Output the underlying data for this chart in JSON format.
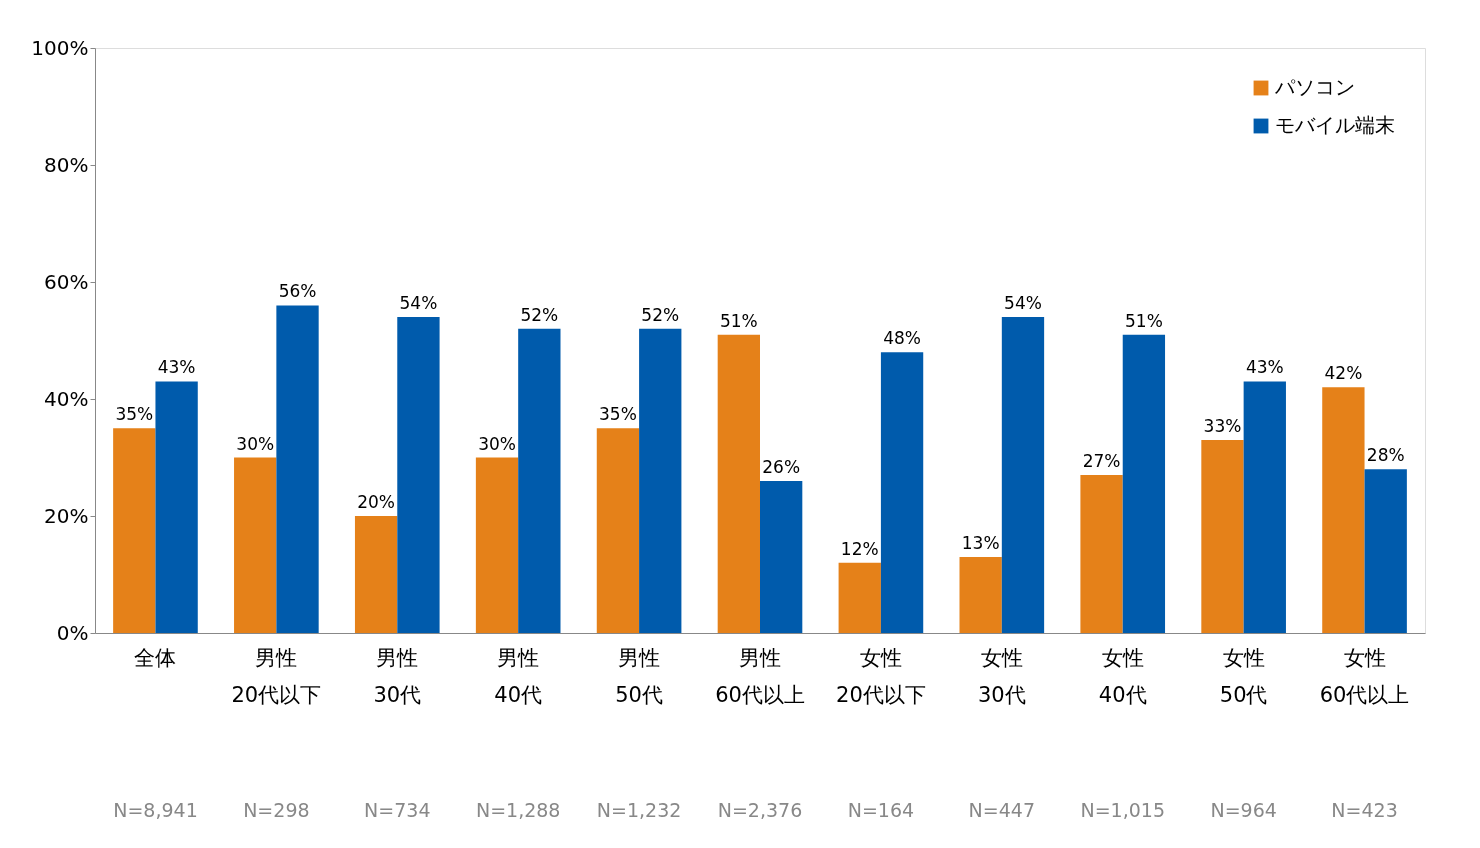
{
  "chart_data": {
    "type": "bar",
    "categories": [
      "全体",
      "男性\n20代以下",
      "男性\n30代",
      "男性\n40代",
      "男性\n50代",
      "男性\n60代以上",
      "女性\n20代以下",
      "女性\n30代",
      "女性\n40代",
      "女性\n50代",
      "女性\n60代以上"
    ],
    "series": [
      {
        "name": "パソコン",
        "color": "#e58119",
        "values": [
          35,
          30,
          20,
          30,
          35,
          51,
          12,
          13,
          27,
          33,
          42
        ],
        "value_labels": [
          "35%",
          "30%",
          "20%",
          "30%",
          "35%",
          "51%",
          "12%",
          "13%",
          "27%",
          "33%",
          "42%"
        ]
      },
      {
        "name": "モバイル端末",
        "color": "#005bac",
        "values": [
          43,
          56,
          54,
          52,
          52,
          26,
          48,
          54,
          51,
          43,
          28
        ],
        "value_labels": [
          "43%",
          "56%",
          "54%",
          "52%",
          "52%",
          "26%",
          "48%",
          "54%",
          "51%",
          "43%",
          "28%"
        ]
      }
    ],
    "ylim": [
      0,
      100
    ],
    "yticks": [
      {
        "value": 0,
        "label": "0%"
      },
      {
        "value": 20,
        "label": "20%"
      },
      {
        "value": 40,
        "label": "40%"
      },
      {
        "value": 60,
        "label": "60%"
      },
      {
        "value": 80,
        "label": "80%"
      },
      {
        "value": 100,
        "label": "100%"
      }
    ],
    "grid": false,
    "legend": "top right",
    "annotations": [
      "N=8,941",
      "N=298",
      "N=734",
      "N=1,288",
      "N=1,232",
      "N=2,376",
      "N=164",
      "N=447",
      "N=1,015",
      "N=964",
      "N=423"
    ]
  }
}
